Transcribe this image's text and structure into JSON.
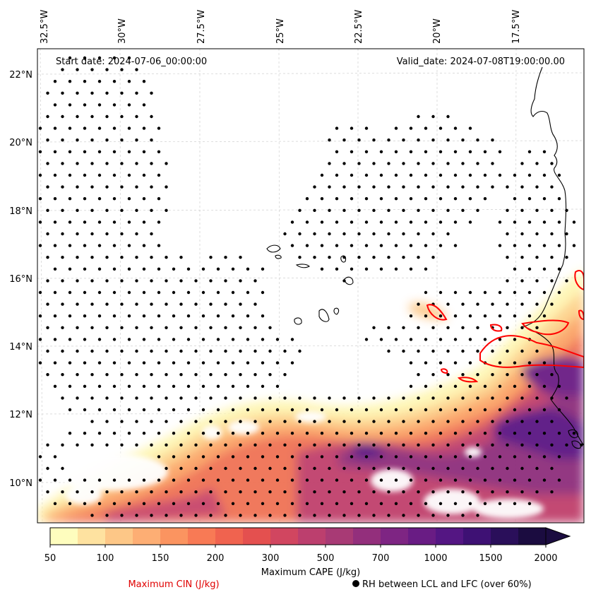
{
  "header": {
    "start_date": "Start date: 2024-07-06_00:00:00",
    "valid_date": "Valid_date: 2024-07-08T19:00:00.00"
  },
  "axes": {
    "lon_labels": [
      "32.5°W",
      "30°W",
      "27.5°W",
      "25°W",
      "22.5°W",
      "20°W",
      "17.5°W"
    ],
    "lat_labels": [
      "22°N",
      "20°N",
      "18°N",
      "16°N",
      "14°N",
      "12°N",
      "10°N"
    ]
  },
  "colorbar": {
    "title": "Maximum CAPE (J/kg)",
    "tick_labels": [
      "50",
      "100",
      "150",
      "200",
      "300",
      "500",
      "700",
      "1000",
      "1500",
      "2000"
    ],
    "colors": [
      "#fefdbe",
      "#fee2a0",
      "#fdc787",
      "#fdae74",
      "#fb9460",
      "#f87a55",
      "#f0634f",
      "#e4504f",
      "#d14660",
      "#bc3f6e",
      "#a83a75",
      "#932f7c",
      "#7e2583",
      "#691c84",
      "#541683",
      "#3e1174",
      "#2a0f5a",
      "#1b0c40"
    ]
  },
  "legend": {
    "cin_label": "Maximum CIN (J/kg)",
    "rh_label": "RH between LCL and LFC (over 60%)",
    "cin_color": "#ff0000"
  }
}
